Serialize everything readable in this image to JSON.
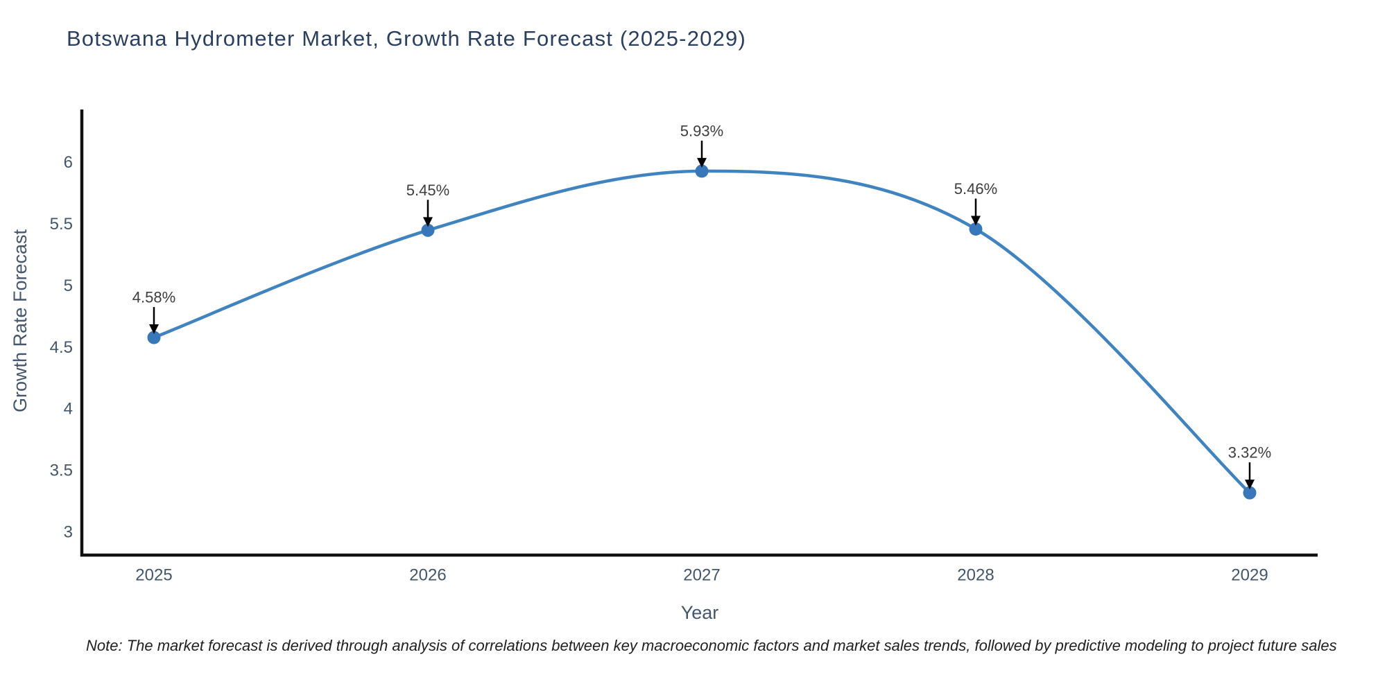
{
  "title": "Botswana Hydrometer Market, Growth Rate Forecast (2025-2029)",
  "note": "Note: The market forecast is derived through analysis of correlations between key macroeconomic factors and market sales trends, followed by predictive modeling to project future sales",
  "chart_data": {
    "type": "line",
    "title": "Botswana Hydrometer Market, Growth Rate Forecast (2025-2029)",
    "categories": [
      "2025",
      "2026",
      "2027",
      "2028",
      "2029"
    ],
    "series": [
      {
        "name": "Growth Rate Forecast",
        "values": [
          4.58,
          5.45,
          5.93,
          5.46,
          3.32
        ]
      }
    ],
    "point_labels": [
      "4.58%",
      "5.45%",
      "5.93%",
      "5.46%",
      "3.32%"
    ],
    "xlabel": "Year",
    "ylabel": "Growth Rate Forecast",
    "ytick_values": [
      3,
      3.5,
      4,
      4.5,
      5,
      5.5,
      6
    ],
    "ytick_labels": [
      "3",
      "3.5",
      "4",
      "4.5",
      "5",
      "5.5",
      "6"
    ],
    "ylim": [
      2.815,
      6.43
    ],
    "line_shape": "spline",
    "grid": false,
    "legend_position": "none",
    "colors": {
      "line": "#3f83c0",
      "marker": "#3878ba",
      "axis": "#111111",
      "tick_label": "#44566b",
      "axis_label": "#44566b",
      "annotation_text": "#3d3d3d",
      "annotation_arrow": "#000000",
      "title": "#2a3f5f",
      "background": "#ffffff"
    }
  }
}
